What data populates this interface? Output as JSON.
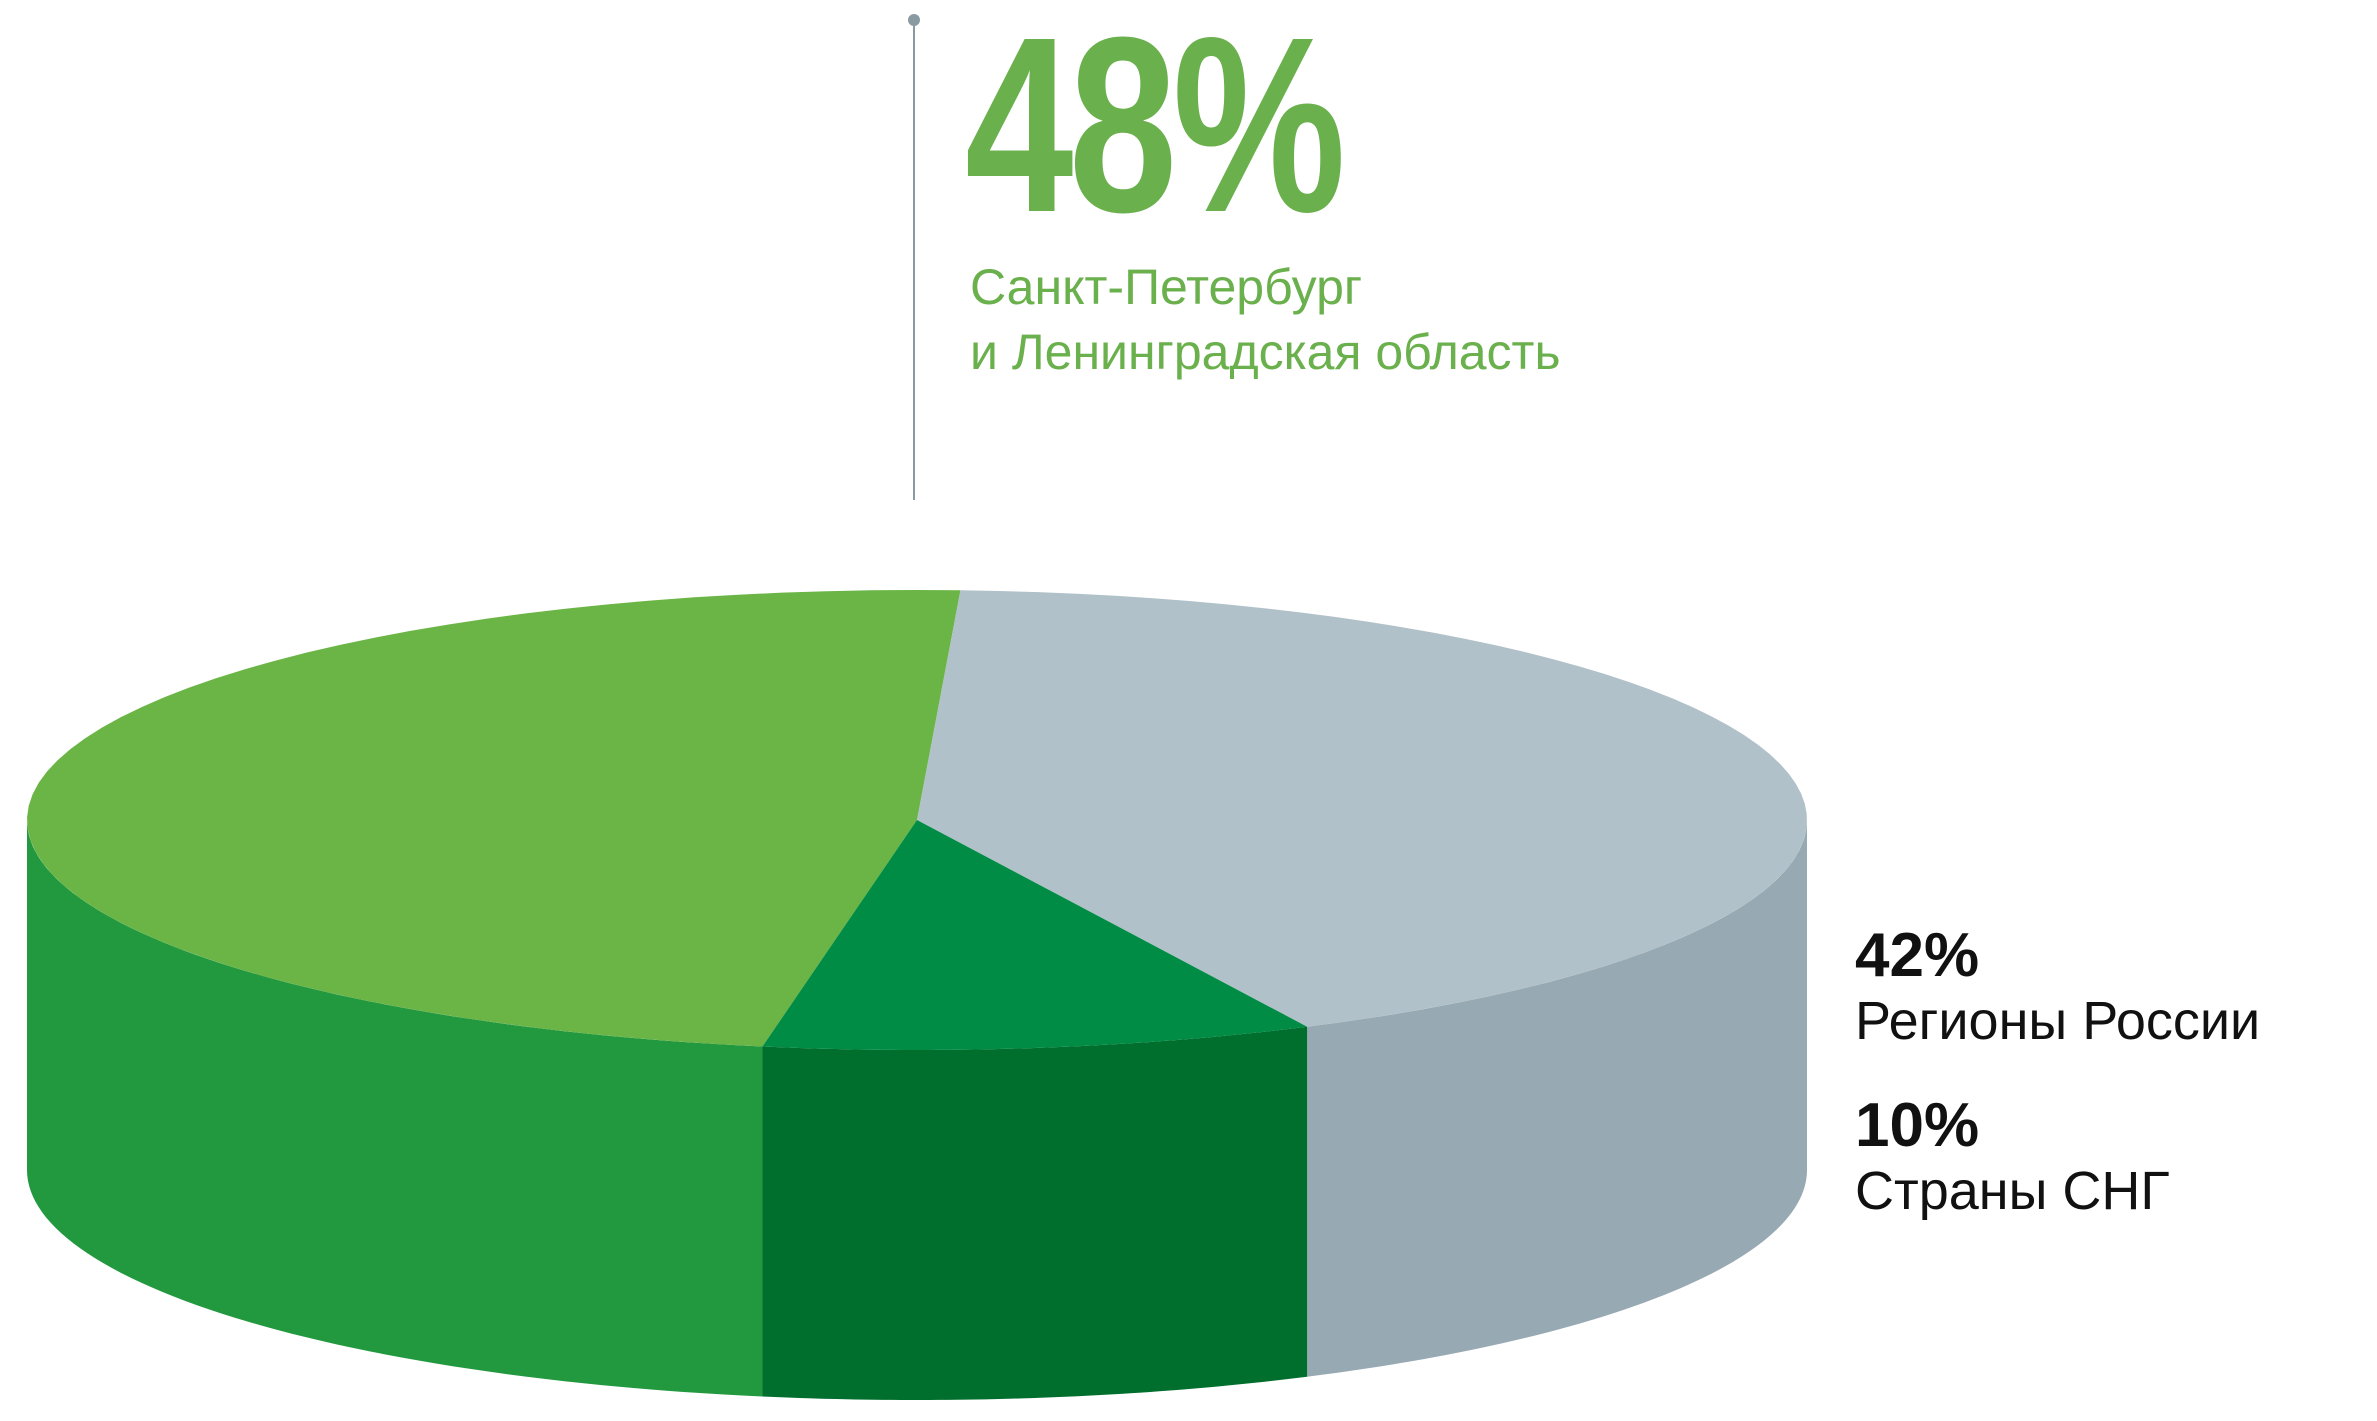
{
  "chart_data": {
    "type": "pie3d",
    "categories": [
      "Санкт-Петербург\nи Ленинградская область",
      "Регионы России",
      "Страны СНГ"
    ],
    "values": [
      48,
      42,
      10
    ],
    "value_labels": [
      "48%",
      "42%",
      "10%"
    ],
    "colors": [
      "#6ab545",
      "#b1c1c9",
      "#008c45"
    ],
    "side_colors": [
      "#22983f",
      "#97a9b2",
      "#006f2d"
    ]
  }
}
